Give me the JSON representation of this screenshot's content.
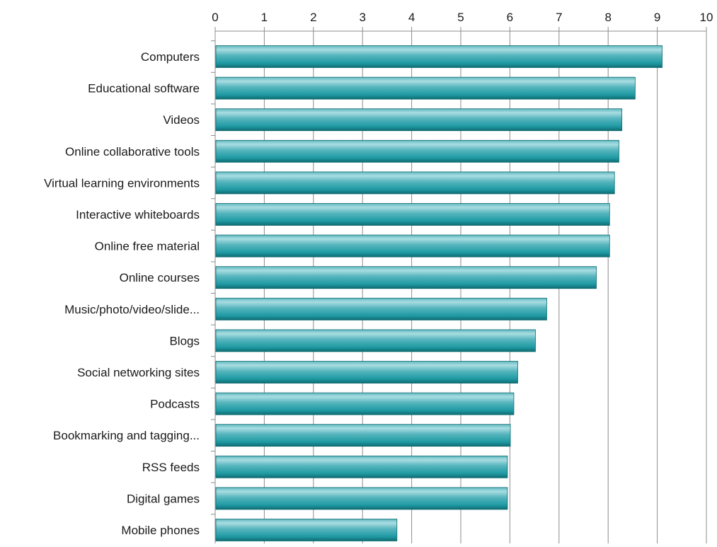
{
  "chart_data": {
    "type": "bar",
    "orientation": "horizontal",
    "title": "",
    "xlabel": "",
    "ylabel": "",
    "xlim": [
      0,
      10
    ],
    "ticks": [
      "0",
      "1",
      "2",
      "3",
      "4",
      "5",
      "6",
      "7",
      "8",
      "9",
      "10"
    ],
    "x_axis_position": "top",
    "grid": true,
    "legend": "none",
    "bar_color": "#1f9aa3",
    "bar_highlight_color": "#a9dde2",
    "bar_shadow_color": "#0f6b72",
    "categories": [
      "Computers",
      "Educational software",
      "Videos",
      "Online collaborative tools",
      "Virtual learning environments",
      "Interactive whiteboards",
      "Online free material",
      "Online courses",
      "Music/photo/video/slide...",
      "Blogs",
      "Social networking sites",
      "Podcasts",
      "Bookmarking and tagging...",
      "RSS feeds",
      "Digital games",
      "Mobile phones"
    ],
    "values": [
      9.1,
      8.55,
      8.28,
      8.22,
      8.13,
      8.03,
      8.03,
      7.76,
      6.75,
      6.52,
      6.16,
      6.08,
      6.01,
      5.95,
      5.95,
      3.7
    ]
  }
}
